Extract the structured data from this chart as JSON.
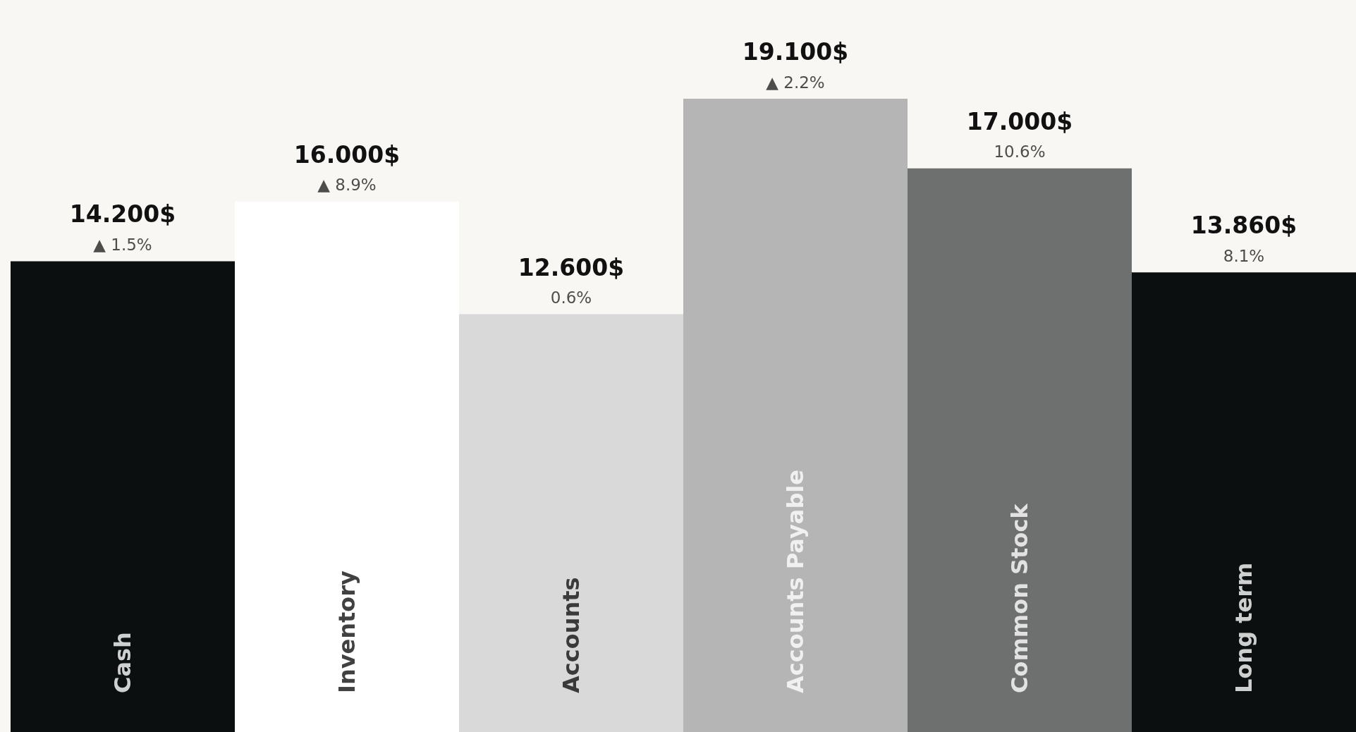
{
  "chart_data": {
    "type": "bar",
    "categories": [
      "Cash",
      "Inventory",
      "Accounts",
      "Accounts Payable",
      "Common Stock",
      "Long term"
    ],
    "values": [
      14.2,
      16.0,
      12.6,
      19.1,
      17.0,
      13.86
    ],
    "colors": [
      "#0b0f0f",
      "#ffffff",
      "#d9d9d9",
      "#b4b5b4",
      "#6d706f",
      "#0b0f0f"
    ],
    "value_labels": [
      "14.200$",
      "16.000$",
      "12.600$",
      "19.100$",
      "17.000$",
      "13.860$"
    ],
    "annotations": [
      {
        "text": "▲ 1.5%",
        "x": "Cash",
        "y": 14.2
      },
      {
        "text": "▲ 8.9%",
        "x": "Inventory",
        "y": 16.0
      },
      {
        "text": "0.6%",
        "x": "Accounts",
        "y": 12.6
      },
      {
        "text": "▲ 2.2%",
        "x": "Accounts Payable",
        "y": 19.1
      },
      {
        "text": "10.6%",
        "x": "Common Stock",
        "y": 17.0
      },
      {
        "text": "8.1%",
        "x": "Long term",
        "y": 13.86
      }
    ]
  }
}
